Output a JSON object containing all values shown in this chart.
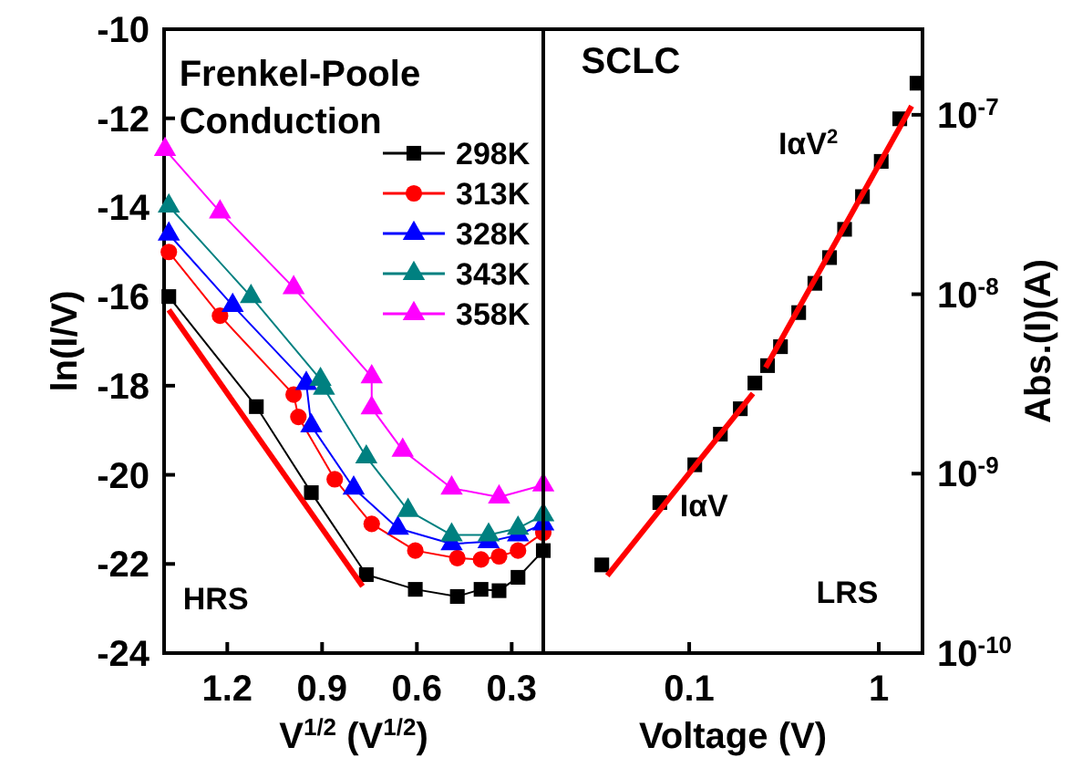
{
  "chart_data": [
    {
      "type": "line",
      "xlabel": "V$^{1/2}$ (V$^{1/2}$)",
      "ylabel": "ln(I/V)",
      "xlim": [
        1.4,
        0.2
      ],
      "xticks": [
        1.2,
        0.9,
        0.6,
        0.3
      ],
      "ylim": [
        -24,
        -10
      ],
      "yticks": [
        -24,
        -22,
        -20,
        -18,
        -16,
        -14,
        -12,
        -10
      ],
      "legend": "top right",
      "annotations": [
        "Frenkel-Poole Conduction",
        "HRS"
      ],
      "series": [
        {
          "name": "298K",
          "color": "#000000",
          "marker": "square",
          "x": [
            1.385,
            1.108,
            0.934,
            0.76,
            0.605,
            0.472,
            0.397,
            0.34,
            0.28,
            0.2
          ],
          "values": [
            -16.0,
            -18.47,
            -20.4,
            -22.24,
            -22.57,
            -22.73,
            -22.57,
            -22.6,
            -22.3,
            -21.7
          ]
        },
        {
          "name": "313K",
          "color": "#ff0000",
          "marker": "circle",
          "x": [
            1.385,
            1.223,
            0.99,
            0.975,
            0.86,
            0.743,
            0.605,
            0.472,
            0.397,
            0.34,
            0.28,
            0.2
          ],
          "values": [
            -15.0,
            -16.43,
            -18.2,
            -18.7,
            -20.1,
            -21.1,
            -21.7,
            -21.87,
            -21.9,
            -21.83,
            -21.7,
            -21.3
          ]
        },
        {
          "name": "328K",
          "color": "#0000ff",
          "marker": "triangle",
          "x": [
            1.385,
            1.183,
            0.95,
            0.934,
            0.8,
            0.66,
            0.49,
            0.373,
            0.28,
            0.2
          ],
          "values": [
            -14.6,
            -16.2,
            -17.95,
            -18.9,
            -20.3,
            -21.2,
            -21.55,
            -21.5,
            -21.35,
            -21.1
          ]
        },
        {
          "name": "343K",
          "color": "#008080",
          "marker": "triangle",
          "x": [
            1.385,
            1.125,
            0.905,
            0.894,
            0.76,
            0.628,
            0.49,
            0.373,
            0.28,
            0.2
          ],
          "values": [
            -13.97,
            -16.0,
            -17.86,
            -18.06,
            -19.6,
            -20.8,
            -21.35,
            -21.35,
            -21.2,
            -20.9
          ]
        },
        {
          "name": "358K",
          "color": "#ff00ff",
          "marker": "triangle",
          "x": [
            1.397,
            1.223,
            0.99,
            0.743,
            0.743,
            0.645,
            0.49,
            0.34,
            0.2
          ],
          "values": [
            -12.7,
            -14.1,
            -15.8,
            -17.8,
            -18.5,
            -19.45,
            -20.3,
            -20.5,
            -20.23
          ]
        },
        {
          "type": "line",
          "color": "#ff0000",
          "marker": "none",
          "x": [
            1.385,
            0.772
          ],
          "values": [
            -16.3,
            -22.5
          ]
        }
      ]
    },
    {
      "type": "scatter",
      "xlabel": "Voltage (V)",
      "ylabel": "Abs.(I)(A)",
      "log": "xy",
      "xlim": [
        0.017,
        1.7
      ],
      "xticks": [
        0.1,
        1
      ],
      "ylim": [
        1e-10,
        3e-07
      ],
      "yticks": [
        {
          "value": 1e-10,
          "label": "10$^{-10}$"
        },
        {
          "value": 1e-09,
          "label": "10$^{-9}$"
        },
        {
          "value": 1e-08,
          "label": "10$^{-8}$"
        },
        {
          "value": 1e-07,
          "label": "10$^{-7}$"
        }
      ],
      "annotations": [
        "SCLC",
        "IαV$^{2}$",
        "IαV",
        "LRS"
      ],
      "series": [
        {
          "color": "#000000",
          "marker": "square",
          "x": [
            0.0346,
            0.07,
            0.107,
            0.146,
            0.186,
            0.222,
            0.259,
            0.303,
            0.378,
            0.46,
            0.55,
            0.66,
            0.82,
            1.03,
            1.29,
            1.59
          ],
          "values": [
            3.1e-10,
            6.9e-10,
            1.12e-09,
            1.66e-09,
            2.3e-09,
            3.2e-09,
            4e-09,
            5.1e-09,
            7.9e-09,
            1.15e-08,
            1.6e-08,
            2.3e-08,
            3.5e-08,
            5.5e-08,
            9.5e-08,
            1.5e-07
          ]
        },
        {
          "type": "line",
          "color": "#ff0000",
          "marker": "none",
          "x": [
            0.037,
            0.217
          ],
          "values": [
            2.7e-10,
            2.8e-09
          ]
        },
        {
          "type": "line",
          "color": "#ff0000",
          "marker": "none",
          "x": [
            0.253,
            1.49
          ],
          "values": [
            3.9e-09,
            1.12e-07
          ]
        }
      ]
    }
  ]
}
